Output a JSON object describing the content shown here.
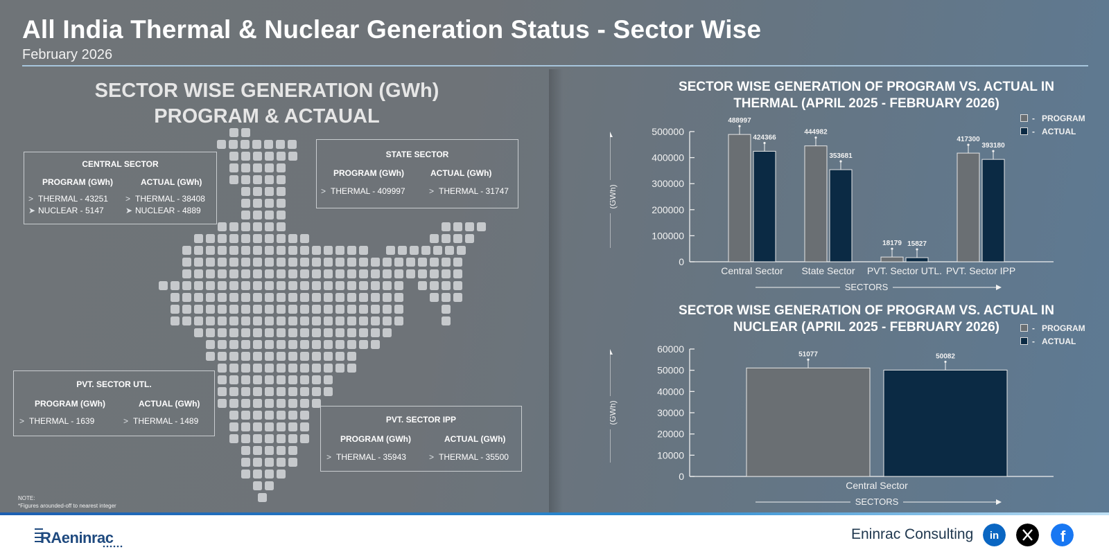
{
  "header": {
    "title": "All India Thermal & Nuclear Generation Status - Sector Wise",
    "subtitle": "February 2026"
  },
  "left_panel": {
    "heading_line1": "SECTOR WISE GENERATION (GWh)",
    "heading_line2": "PROGRAM & ACTAUAL",
    "central": {
      "title": "CENTRAL SECTOR",
      "program_header": "PROGRAM (GWh)",
      "actual_header": "ACTUAL (GWh)",
      "program_thermal": "THERMAL - 43251",
      "program_nuclear": "NUCLEAR - 5147",
      "actual_thermal": "THERMAL - 38408",
      "actual_nuclear": "NUCLEAR - 4889"
    },
    "state": {
      "title": "STATE SECTOR",
      "program_header": "PROGRAM (GWh)",
      "actual_header": "ACTUAL (GWh)",
      "program_thermal": "THERMAL - 409997",
      "actual_thermal": "THERMAL - 31747"
    },
    "pvt_utl": {
      "title": "PVT. SECTOR UTL.",
      "program_header": "PROGRAM (GWh)",
      "actual_header": "ACTUAL (GWh)",
      "program_thermal": "THERMAL - 1639",
      "actual_thermal": "THERMAL - 1489"
    },
    "pvt_ipp": {
      "title": "PVT. SECTOR IPP",
      "program_header": "PROGRAM (GWh)",
      "actual_header": "ACTUAL (GWh)",
      "program_thermal": "THERMAL -  35943",
      "actual_thermal": "THERMAL - 35500"
    },
    "note_line1": "NOTE:",
    "note_line2": "*Figures arounded-off to nearest integer"
  },
  "chart_data": [
    {
      "type": "bar",
      "title": "SECTOR WISE GENERATION OF PROGRAM VS. ACTUAL IN THERMAL (APRIL 2025 - FEBRUARY 2026)",
      "title_line1": "SECTOR WISE GENERATION OF PROGRAM VS. ACTUAL IN",
      "title_line2": "THERMAL (APRIL 2025 - FEBRUARY 2026)",
      "categories": [
        "Central Sector",
        "State Sector",
        "PVT. Sector UTL.",
        "PVT. Sector IPP"
      ],
      "series": [
        {
          "name": "PROGRAM",
          "values": [
            488997,
            444982,
            18179,
            417300
          ],
          "color": "#6a6f73"
        },
        {
          "name": "ACTUAL",
          "values": [
            424366,
            353681,
            15827,
            393180
          ],
          "color": "#0b2a44"
        }
      ],
      "xlabel": "SECTORS",
      "ylabel": "(GWh)",
      "ylim": [
        0,
        500000
      ],
      "yticks": [
        0,
        100000,
        200000,
        300000,
        400000,
        500000
      ],
      "legend_position": "top-right"
    },
    {
      "type": "bar",
      "title": "SECTOR WISE GENERATION OF PROGRAM VS. ACTUAL IN NUCLEAR (APRIL 2025 - FEBRUARY 2026)",
      "title_line1": "SECTOR WISE GENERATION OF PROGRAM VS. ACTUAL IN",
      "title_line2": "NUCLEAR (APRIL 2025 - FEBRUARY 2026)",
      "categories": [
        "Central Sector"
      ],
      "series": [
        {
          "name": "PROGRAM",
          "values": [
            51077
          ],
          "color": "#6a6f73"
        },
        {
          "name": "ACTUAL",
          "values": [
            50082
          ],
          "color": "#0b2a44"
        }
      ],
      "xlabel": "SECTORS",
      "ylabel": "(GWh)",
      "ylim": [
        0,
        60000
      ],
      "yticks": [
        0,
        10000,
        20000,
        30000,
        40000,
        50000,
        60000
      ],
      "legend_position": "top-right"
    }
  ],
  "legend": {
    "program": "PROGRAM",
    "actual": "ACTUAL",
    "dash": "-"
  },
  "footer": {
    "logo_text": "RAeninrac",
    "brand": "Eninrac Consulting",
    "icons": [
      "linkedin-icon",
      "x-icon",
      "facebook-icon"
    ]
  }
}
